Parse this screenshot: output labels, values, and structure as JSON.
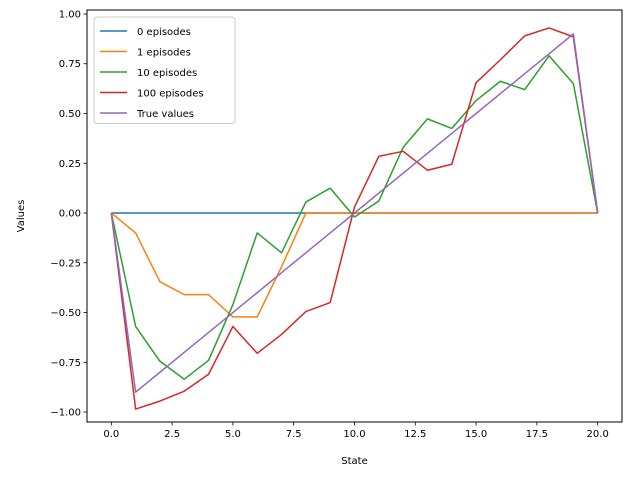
{
  "chart_data": {
    "type": "line",
    "title": "",
    "xlabel": "State",
    "ylabel": "Values",
    "xlim": [
      -1,
      21
    ],
    "ylim": [
      -1.05,
      1.02
    ],
    "x_ticks": [
      0.0,
      2.5,
      5.0,
      7.5,
      10.0,
      12.5,
      15.0,
      17.5,
      20.0
    ],
    "x_tick_labels": [
      "0.0",
      "2.5",
      "5.0",
      "7.5",
      "10.0",
      "12.5",
      "15.0",
      "17.5",
      "20.0"
    ],
    "y_ticks": [
      -1.0,
      -0.75,
      -0.5,
      -0.25,
      0.0,
      0.25,
      0.5,
      0.75,
      1.0
    ],
    "y_tick_labels": [
      "−1.00",
      "−0.75",
      "−0.50",
      "−0.25",
      "0.00",
      "0.25",
      "0.50",
      "0.75",
      "1.00"
    ],
    "grid": false,
    "legend_position": "top-left",
    "x": [
      0,
      1,
      2,
      3,
      4,
      5,
      6,
      7,
      8,
      9,
      10,
      11,
      12,
      13,
      14,
      15,
      16,
      17,
      18,
      19,
      20
    ],
    "series": [
      {
        "name": "0 episodes",
        "color": "#1f77b4",
        "values": [
          0,
          0,
          0,
          0,
          0,
          0,
          0,
          0,
          0,
          0,
          0,
          0,
          0,
          0,
          0,
          0,
          0,
          0,
          0,
          0,
          0
        ]
      },
      {
        "name": "1 episodes",
        "color": "#ff7f0e",
        "values": [
          0,
          -0.1,
          -0.345,
          -0.41,
          -0.41,
          -0.522,
          -0.522,
          -0.27,
          0,
          0,
          0,
          0,
          0,
          0,
          0,
          0,
          0,
          0,
          0,
          0,
          0
        ]
      },
      {
        "name": "10 episodes",
        "color": "#2ca02c",
        "values": [
          0,
          -0.57,
          -0.745,
          -0.835,
          -0.74,
          -0.46,
          -0.1,
          -0.2,
          0.055,
          0.125,
          -0.02,
          0.06,
          0.33,
          0.473,
          0.425,
          0.565,
          0.662,
          0.62,
          0.79,
          0.65,
          0
        ]
      },
      {
        "name": "100 episodes",
        "color": "#d62728",
        "values": [
          0,
          -0.985,
          -0.945,
          -0.895,
          -0.81,
          -0.57,
          -0.705,
          -0.61,
          -0.495,
          -0.45,
          0.03,
          0.285,
          0.31,
          0.215,
          0.245,
          0.655,
          0.77,
          0.89,
          0.93,
          0.885,
          0
        ]
      },
      {
        "name": "True values",
        "color": "#9467bd",
        "values": [
          0,
          -0.9,
          -0.8,
          -0.7,
          -0.6,
          -0.5,
          -0.4,
          -0.3,
          -0.2,
          -0.1,
          0,
          0.1,
          0.2,
          0.3,
          0.4,
          0.5,
          0.6,
          0.7,
          0.8,
          0.9,
          0
        ]
      }
    ]
  }
}
